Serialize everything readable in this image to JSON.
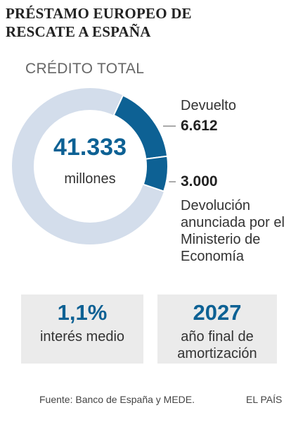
{
  "chart_data": {
    "type": "donut",
    "title": "PRÉSTAMO EUROPEO DE RESCATE A ESPAÑA",
    "subtitle": "CRÉDITO TOTAL",
    "total": 41333,
    "total_label": "41.333",
    "total_unit": "millones",
    "total_color": "#d3ddeb",
    "categories": [
      "Devuelto",
      "Devolución anunciada por el Ministerio de Economía"
    ],
    "values": [
      6612,
      3000
    ],
    "value_labels": [
      "6.612",
      "3.000"
    ],
    "color": "#0d6194"
  },
  "highlights": [
    {
      "value": "1,1%",
      "label": "interés medio"
    },
    {
      "value": "2027",
      "label": "año final de amortización"
    }
  ],
  "footer": {
    "source": "Fuente: Banco de España y MEDE.",
    "credit": "EL PAÍS"
  }
}
